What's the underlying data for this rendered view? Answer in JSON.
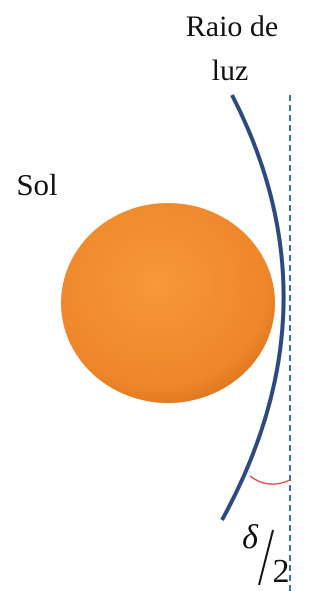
{
  "labels": {
    "light_ray": [
      "Raio de",
      "luz"
    ],
    "sun": "Sol",
    "angle": {
      "symbol": "δ",
      "denominator": "2"
    }
  }
}
